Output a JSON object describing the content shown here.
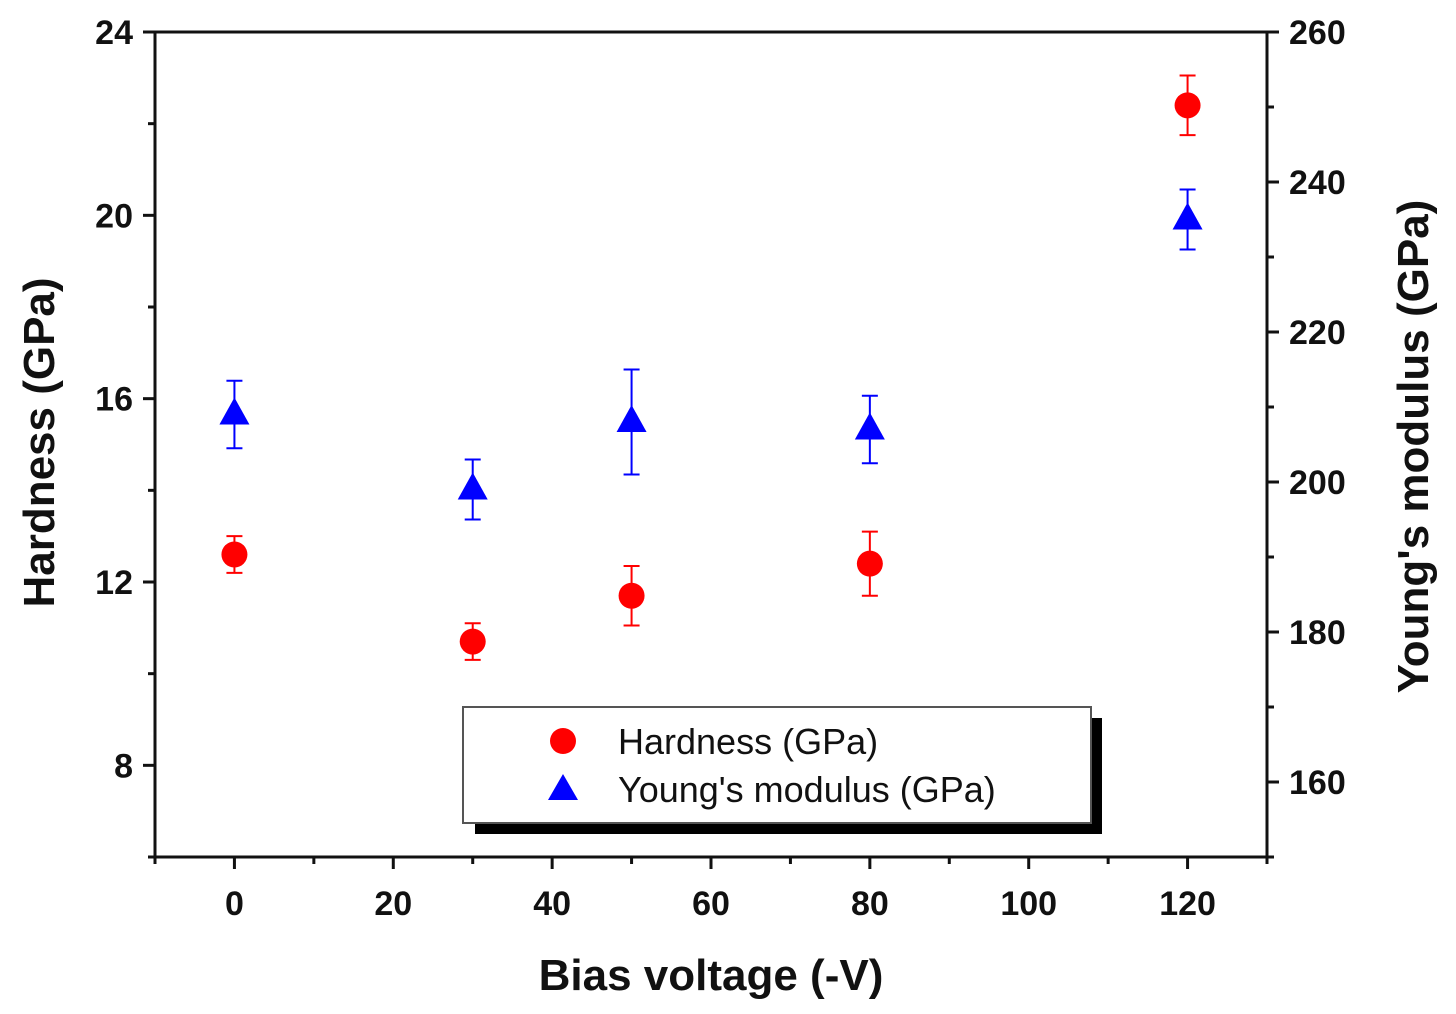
{
  "chart_data": {
    "type": "scatter",
    "title": "",
    "xlabel": "Bias voltage (-V)",
    "ylabel_left": "Hardness (GPa)",
    "ylabel_right": "Young's modulus (GPa)",
    "xlim": [
      -10,
      130
    ],
    "ylim_left": [
      6,
      24
    ],
    "ylim_right": [
      150,
      260
    ],
    "x_ticks": [
      0,
      20,
      40,
      60,
      80,
      100,
      120
    ],
    "y_left_ticks": [
      8,
      12,
      16,
      20,
      24
    ],
    "y_right_ticks": [
      160,
      180,
      200,
      220,
      240,
      260
    ],
    "grid": false,
    "legend_position": "bottom-center",
    "series": [
      {
        "name": "Hardness (GPa)",
        "axis": "left",
        "marker": "circle",
        "color": "#ff0000",
        "x": [
          0,
          30,
          50,
          80,
          120
        ],
        "y": [
          12.6,
          10.7,
          11.7,
          12.4,
          22.4
        ],
        "err": [
          0.4,
          0.4,
          0.65,
          0.7,
          0.65
        ]
      },
      {
        "name": "Young's modulus (GPa)",
        "axis": "right",
        "marker": "triangle",
        "color": "#0000ff",
        "x": [
          0,
          30,
          50,
          80,
          120
        ],
        "y": [
          209,
          199,
          208,
          207,
          235
        ],
        "err": [
          4.5,
          4,
          7,
          4.5,
          4
        ]
      }
    ]
  }
}
